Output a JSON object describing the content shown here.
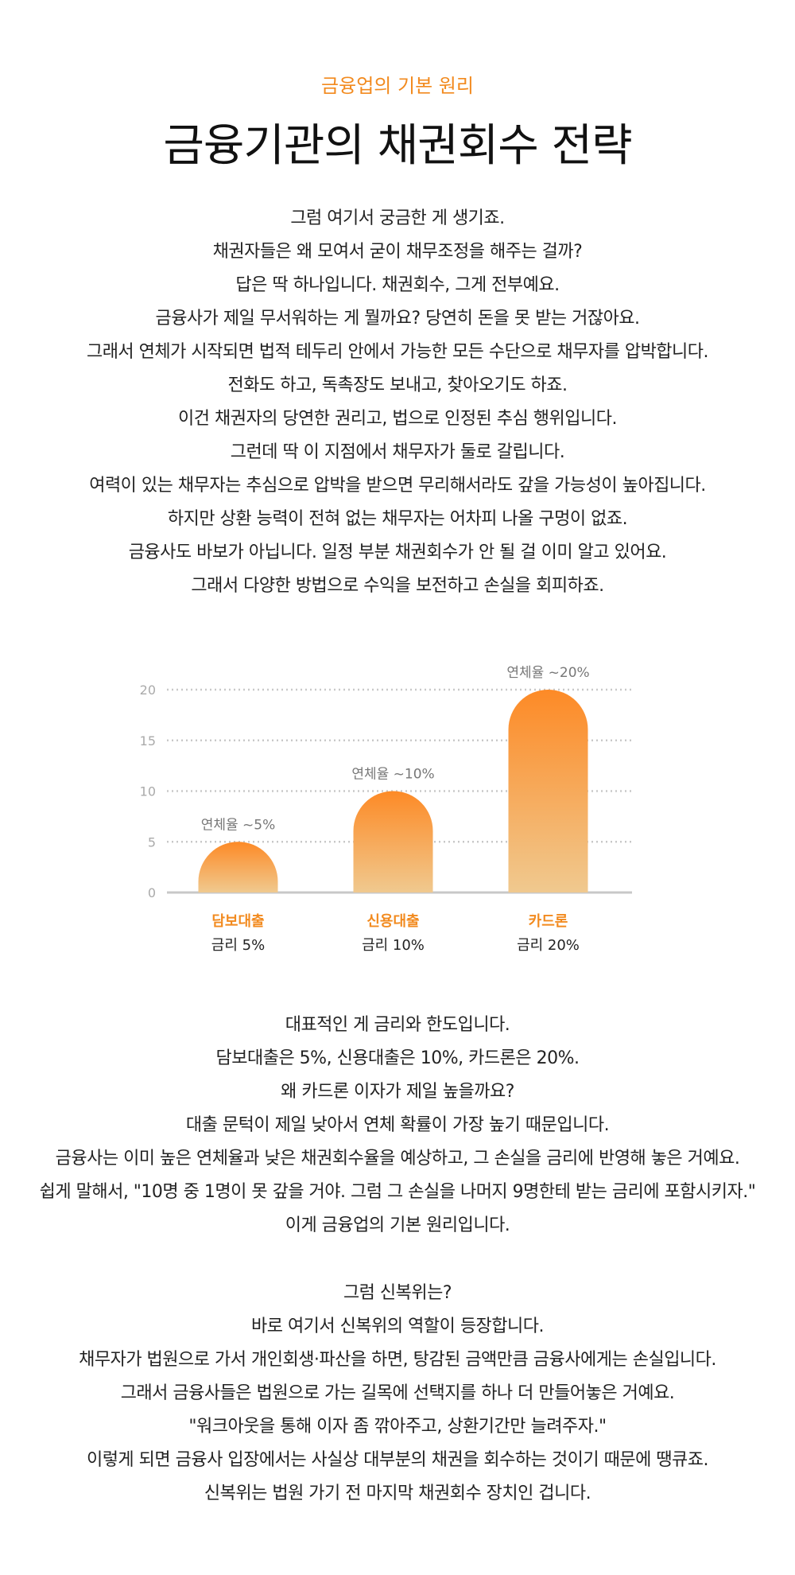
{
  "header": {
    "eyebrow": "금융업의 기본 원리",
    "title": "금융기관의 채권회수 전략"
  },
  "section1": {
    "lines": [
      "그럼 여기서 궁금한 게 생기죠.",
      "채권자들은 왜 모여서 굳이 채무조정을 해주는 걸까?",
      "답은 딱 하나입니다. 채권회수, 그게 전부예요.",
      "금융사가 제일 무서워하는 게 뭘까요? 당연히 돈을 못 받는 거잖아요.",
      "그래서 연체가 시작되면 법적 테두리 안에서 가능한 모든 수단으로 채무자를 압박합니다.",
      "전화도 하고, 독촉장도 보내고, 찾아오기도 하죠.",
      "이건 채권자의 당연한 권리고, 법으로 인정된 추심 행위입니다.",
      "그런데 딱 이 지점에서 채무자가 둘로 갈립니다.",
      "여력이 있는 채무자는 추심으로 압박을 받으면 무리해서라도 갚을 가능성이 높아집니다.",
      "하지만 상환 능력이 전혀 없는 채무자는 어차피 나올 구멍이 없죠.",
      "금융사도 바보가 아닙니다. 일정 부분 채권회수가 안 될 걸 이미 알고 있어요.",
      "그래서 다양한 방법으로 수익을 보전하고 손실을 회피하죠."
    ]
  },
  "chart_data": {
    "type": "bar",
    "categories": [
      "담보대출",
      "신용대출",
      "카드론"
    ],
    "category_sublabels": [
      "금리 5%",
      "금리 10%",
      "금리 20%"
    ],
    "values": [
      5,
      10,
      20
    ],
    "data_labels": [
      "연체율 ~5%",
      "연체율 ~10%",
      "연체율 ~20%"
    ],
    "yticks": [
      0,
      5,
      10,
      15,
      20
    ],
    "ylim": [
      0,
      20
    ],
    "grid": true,
    "colors": {
      "bar_top": "#fd8a26",
      "bar_bottom": "#f0c98f",
      "grid": "#c8c8c8",
      "axis": "#c8c8c8",
      "label": "#777777",
      "category": "#f28a1e"
    }
  },
  "section2": {
    "lines": [
      "대표적인 게 금리와 한도입니다.",
      "담보대출은 5%, 신용대출은 10%, 카드론은 20%.",
      "왜 카드론 이자가 제일 높을까요?",
      "대출 문턱이 제일 낮아서 연체 확률이 가장 높기 때문입니다.",
      "금융사는 이미 높은 연체율과 낮은 채권회수율을 예상하고, 그 손실을 금리에 반영해 놓은 거예요.",
      "쉽게 말해서, \"10명 중 1명이 못 갚을 거야. 그럼 그 손실을 나머지 9명한테 받는 금리에 포함시키자.\"",
      "이게 금융업의 기본 원리입니다."
    ]
  },
  "section3": {
    "lines": [
      "그럼 신복위는?",
      "바로 여기서 신복위의 역할이 등장합니다.",
      "채무자가 법원으로 가서 개인회생·파산을 하면, 탕감된 금액만큼 금융사에게는 손실입니다.",
      "그래서 금융사들은 법원으로 가는 길목에 선택지를 하나 더 만들어놓은 거예요.",
      "\"워크아웃을 통해 이자 좀 깎아주고, 상환기간만 늘려주자.\"",
      "이렇게 되면 금융사 입장에서는 사실상 대부분의 채권을 회수하는 것이기 때문에 땡큐죠.",
      "신복위는 법원 가기 전 마지막 채권회수 장치인 겁니다."
    ]
  }
}
